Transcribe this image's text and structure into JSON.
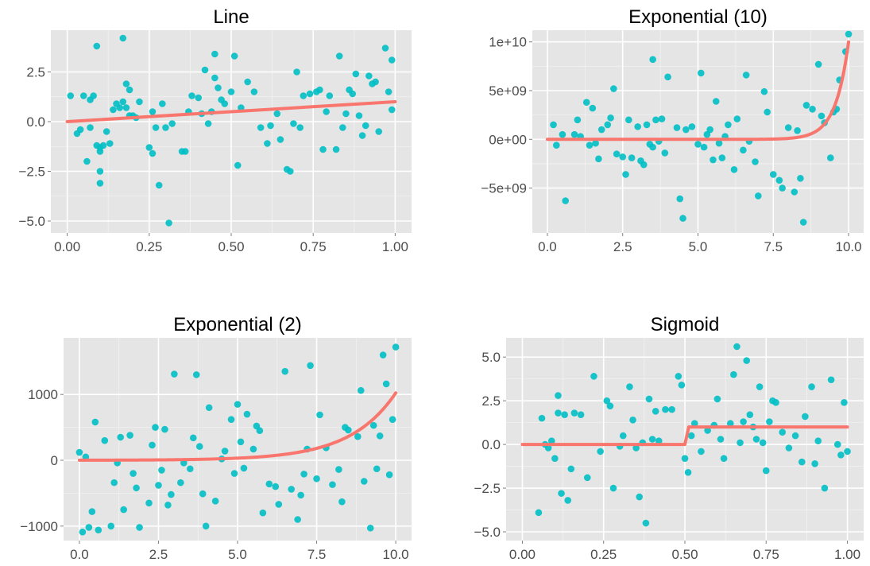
{
  "chart_data": [
    {
      "type": "scatter",
      "title": "Line",
      "xlim": [
        -0.05,
        1.05
      ],
      "ylim": [
        -5.6,
        4.6
      ],
      "xticks": [
        0,
        0.25,
        0.5,
        0.75,
        1.0
      ],
      "xtick_labels": [
        "0.00",
        "0.25",
        "0.50",
        "0.75",
        "1.00"
      ],
      "yticks": [
        -5,
        -2.5,
        0,
        2.5
      ],
      "ytick_labels": [
        "−5.0",
        "−2.5",
        "0.0",
        "2.5"
      ],
      "grid": true,
      "series": [
        {
          "kind": "points",
          "color": "#00bfc4",
          "x": [
            0.01,
            0.03,
            0.04,
            0.05,
            0.06,
            0.07,
            0.07,
            0.08,
            0.09,
            0.09,
            0.1,
            0.1,
            0.1,
            0.1,
            0.11,
            0.12,
            0.13,
            0.14,
            0.15,
            0.16,
            0.17,
            0.17,
            0.18,
            0.18,
            0.19,
            0.19,
            0.2,
            0.21,
            0.22,
            0.25,
            0.26,
            0.26,
            0.27,
            0.28,
            0.29,
            0.3,
            0.31,
            0.32,
            0.35,
            0.36,
            0.37,
            0.38,
            0.4,
            0.41,
            0.42,
            0.43,
            0.44,
            0.45,
            0.45,
            0.46,
            0.47,
            0.48,
            0.5,
            0.51,
            0.52,
            0.53,
            0.55,
            0.57,
            0.59,
            0.61,
            0.62,
            0.64,
            0.65,
            0.67,
            0.68,
            0.69,
            0.7,
            0.71,
            0.72,
            0.74,
            0.76,
            0.77,
            0.78,
            0.79,
            0.8,
            0.82,
            0.83,
            0.84,
            0.85,
            0.86,
            0.87,
            0.88,
            0.89,
            0.9,
            0.91,
            0.92,
            0.93,
            0.94,
            0.95,
            0.97,
            0.98,
            0.99,
            0.99
          ],
          "y": [
            1.3,
            -0.6,
            -0.4,
            1.3,
            -2.0,
            1.1,
            -0.3,
            1.3,
            3.8,
            -1.2,
            -1.5,
            -1.3,
            -2.5,
            -3.1,
            -1.2,
            -0.5,
            -1.1,
            0.6,
            0.9,
            0.7,
            1.0,
            4.2,
            0.7,
            1.9,
            1.6,
            0.3,
            0.3,
            0.2,
            1.0,
            -1.3,
            -1.6,
            0.5,
            -0.3,
            -3.2,
            0.9,
            -0.3,
            -5.1,
            -0.1,
            -1.5,
            -1.5,
            0.5,
            1.3,
            1.2,
            0.4,
            2.6,
            -0.1,
            0.5,
            3.4,
            2.2,
            1.7,
            1.1,
            0.9,
            1.5,
            3.3,
            -2.2,
            0.7,
            2.0,
            1.5,
            -0.3,
            -1.1,
            -0.2,
            0.4,
            -0.9,
            -2.4,
            -2.5,
            -0.1,
            2.5,
            -0.3,
            1.3,
            1.4,
            1.5,
            1.6,
            -1.4,
            0.5,
            1.3,
            -1.4,
            3.3,
            -0.3,
            0.4,
            1.6,
            1.4,
            2.4,
            0.3,
            -0.7,
            -0.2,
            2.3,
            1.9,
            2.0,
            -0.5,
            3.7,
            1.5,
            3.1,
            0.6
          ]
        },
        {
          "kind": "line",
          "color": "#f8766d",
          "x": [
            0,
            1
          ],
          "y": [
            0,
            1
          ]
        }
      ]
    },
    {
      "type": "scatter",
      "title": "Exponential (10)",
      "xlim": [
        -0.5,
        10.5
      ],
      "ylim": [
        -9600000000.0,
        11200000000.0
      ],
      "xticks": [
        0,
        2.5,
        5,
        7.5,
        10
      ],
      "xtick_labels": [
        "0.0",
        "2.5",
        "5.0",
        "7.5",
        "10.0"
      ],
      "yticks": [
        -5000000000.0,
        0,
        5000000000.0,
        10000000000.0
      ],
      "ytick_labels": [
        "−5e+09",
        "0e+00",
        "5e+09",
        "1e+10"
      ],
      "grid": true,
      "series": [
        {
          "kind": "points",
          "color": "#00bfc4",
          "x": [
            0.2,
            0.3,
            0.5,
            0.6,
            0.9,
            1.0,
            1.1,
            1.3,
            1.4,
            1.5,
            1.6,
            1.7,
            1.8,
            2.0,
            2.1,
            2.2,
            2.3,
            2.5,
            2.6,
            2.7,
            2.8,
            3.0,
            3.1,
            3.2,
            3.3,
            3.4,
            3.5,
            3.5,
            3.6,
            3.7,
            3.8,
            3.9,
            4.0,
            4.3,
            4.4,
            4.5,
            4.6,
            4.8,
            5.0,
            5.1,
            5.2,
            5.3,
            5.4,
            5.5,
            5.6,
            5.7,
            5.8,
            5.9,
            6.0,
            6.2,
            6.3,
            6.5,
            6.6,
            6.7,
            6.9,
            7.0,
            7.2,
            7.3,
            7.5,
            7.7,
            7.8,
            8.0,
            8.2,
            8.3,
            8.4,
            8.5,
            8.6,
            8.8,
            9.0,
            9.1,
            9.2,
            9.4,
            9.5,
            9.6,
            9.7,
            9.9,
            10.0
          ],
          "y": [
            1500000000.0,
            -600000000.0,
            500000000.0,
            -6300000000.0,
            500000000.0,
            2000000000.0,
            300000000.0,
            3800000000.0,
            -600000000.0,
            3200000000.0,
            -400000000.0,
            -2000000000.0,
            1000000000.0,
            1500000000.0,
            2200000000.0,
            5200000000.0,
            -1500000000.0,
            -1800000000.0,
            -3600000000.0,
            2000000000.0,
            -1900000000.0,
            1300000000.0,
            -2200000000.0,
            -2600000000.0,
            1500000000.0,
            -500000000.0,
            8200000000.0,
            -800000000.0,
            2000000000.0,
            -200000000.0,
            2100000000.0,
            -1400000000.0,
            6400000000.0,
            1200000000.0,
            -6100000000.0,
            -8100000000.0,
            1000000000.0,
            1300000000.0,
            -500000000.0,
            6800000000.0,
            -800000000.0,
            500000000.0,
            1000000000.0,
            -2100000000.0,
            3900000000.0,
            -400000000.0,
            -1900000000.0,
            300000000.0,
            1500000000.0,
            -3100000000.0,
            2100000000.0,
            -1100000000.0,
            6600000000.0,
            -200000000.0,
            -2300000000.0,
            -5800000000.0,
            4900000000.0,
            2800000000.0,
            -3600000000.0,
            -4200000000.0,
            -5000000000.0,
            1200000000.0,
            -5400000000.0,
            900000000.0,
            -4000000000.0,
            -8500000000.0,
            3500000000.0,
            3100000000.0,
            7700000000.0,
            2400000000.0,
            1700000000.0,
            -1900000000.0,
            2800000000.0,
            3100000000.0,
            6100000000.0,
            9000000000.0,
            10800000000.0
          ]
        },
        {
          "kind": "curve",
          "color": "#f8766d",
          "form": "pow10",
          "x0": 0,
          "x1": 10
        }
      ]
    },
    {
      "type": "scatter",
      "title": "Exponential (2)",
      "xlim": [
        -0.5,
        10.5
      ],
      "ylim": [
        -1220,
        1860
      ],
      "xticks": [
        0,
        2.5,
        5,
        7.5,
        10
      ],
      "xtick_labels": [
        "0.0",
        "2.5",
        "5.0",
        "7.5",
        "10.0"
      ],
      "yticks": [
        -1000,
        0,
        1000
      ],
      "ytick_labels": [
        "−1000",
        "0",
        "1000"
      ],
      "grid": true,
      "series": [
        {
          "kind": "points",
          "color": "#00bfc4",
          "x": [
            0.0,
            0.1,
            0.2,
            0.3,
            0.4,
            0.5,
            0.6,
            0.8,
            1.0,
            1.1,
            1.2,
            1.3,
            1.4,
            1.6,
            1.7,
            1.8,
            1.9,
            2.2,
            2.3,
            2.4,
            2.5,
            2.6,
            2.7,
            2.8,
            2.9,
            3.0,
            3.2,
            3.3,
            3.5,
            3.6,
            3.7,
            3.8,
            3.9,
            4.0,
            4.1,
            4.3,
            4.5,
            4.6,
            4.8,
            4.9,
            5.0,
            5.1,
            5.2,
            5.3,
            5.5,
            5.6,
            5.7,
            5.8,
            6.0,
            6.2,
            6.3,
            6.5,
            6.7,
            6.9,
            7.0,
            7.1,
            7.2,
            7.3,
            7.5,
            7.6,
            7.8,
            8.0,
            8.2,
            8.3,
            8.4,
            8.5,
            8.8,
            8.9,
            9.0,
            9.2,
            9.3,
            9.4,
            9.5,
            9.6,
            9.7,
            9.8,
            9.9,
            10.0
          ],
          "y": [
            120,
            -1090,
            50,
            -1020,
            -780,
            580,
            -1060,
            300,
            -1000,
            -340,
            -40,
            350,
            -750,
            380,
            -200,
            -420,
            -1020,
            -650,
            230,
            500,
            -380,
            -150,
            470,
            -680,
            -520,
            1310,
            -340,
            -40,
            -130,
            340,
            1300,
            210,
            -510,
            -1000,
            800,
            -620,
            20,
            140,
            620,
            -200,
            850,
            280,
            -120,
            700,
            170,
            520,
            450,
            -800,
            -360,
            -400,
            -670,
            1350,
            -440,
            -900,
            -530,
            -210,
            170,
            1440,
            -280,
            690,
            190,
            -370,
            -140,
            -630,
            500,
            460,
            360,
            1060,
            -320,
            -1030,
            530,
            -130,
            370,
            1600,
            1160,
            -220,
            620,
            1720
          ]
        },
        {
          "kind": "curve",
          "color": "#f8766d",
          "form": "pow2",
          "x0": 0,
          "x1": 10
        }
      ]
    },
    {
      "type": "scatter",
      "title": "Sigmoid",
      "xlim": [
        -0.05,
        1.05
      ],
      "ylim": [
        -5.5,
        6.1
      ],
      "xticks": [
        0,
        0.25,
        0.5,
        0.75,
        1.0
      ],
      "xtick_labels": [
        "0.00",
        "0.25",
        "0.50",
        "0.75",
        "1.00"
      ],
      "yticks": [
        -5,
        -2.5,
        0,
        2.5,
        5
      ],
      "ytick_labels": [
        "−5.0",
        "−2.5",
        "0.0",
        "2.5",
        "5.0"
      ],
      "grid": true,
      "series": [
        {
          "kind": "points",
          "color": "#00bfc4",
          "x": [
            0.05,
            0.06,
            0.07,
            0.08,
            0.09,
            0.1,
            0.11,
            0.11,
            0.12,
            0.13,
            0.14,
            0.15,
            0.16,
            0.18,
            0.2,
            0.22,
            0.24,
            0.26,
            0.27,
            0.28,
            0.3,
            0.31,
            0.33,
            0.34,
            0.35,
            0.36,
            0.37,
            0.38,
            0.39,
            0.4,
            0.41,
            0.42,
            0.44,
            0.46,
            0.48,
            0.49,
            0.5,
            0.51,
            0.52,
            0.53,
            0.55,
            0.57,
            0.59,
            0.6,
            0.61,
            0.62,
            0.64,
            0.65,
            0.66,
            0.67,
            0.68,
            0.69,
            0.7,
            0.71,
            0.72,
            0.73,
            0.74,
            0.75,
            0.76,
            0.77,
            0.78,
            0.8,
            0.82,
            0.84,
            0.86,
            0.87,
            0.89,
            0.9,
            0.91,
            0.93,
            0.95,
            0.97,
            0.98,
            0.99,
            1.0
          ],
          "y": [
            -3.9,
            1.5,
            0.0,
            -0.2,
            0.2,
            -0.8,
            2.8,
            1.8,
            -2.8,
            1.7,
            -3.2,
            -1.4,
            1.8,
            1.7,
            -1.9,
            3.9,
            -0.4,
            2.5,
            2.2,
            -2.5,
            -0.1,
            0.5,
            3.3,
            1.4,
            -0.2,
            -3.0,
            0.1,
            -4.5,
            2.6,
            0.3,
            1.9,
            0.2,
            2.0,
            2.0,
            3.9,
            3.4,
            -0.8,
            -1.6,
            0.5,
            1.2,
            -0.4,
            0.8,
            1.1,
            2.6,
            0.3,
            -0.8,
            1.2,
            4.0,
            5.6,
            0.1,
            1.3,
            4.8,
            1.7,
            1.0,
            0.3,
            3.3,
            0.1,
            -1.5,
            1.3,
            2.5,
            2.4,
            0.7,
            -0.2,
            0.5,
            -1.0,
            1.6,
            3.3,
            -1.1,
            0.2,
            -2.5,
            3.7,
            0.0,
            -0.6,
            2.4,
            -0.4
          ]
        },
        {
          "kind": "step",
          "color": "#f8766d",
          "x0": 0,
          "x1": 1,
          "xs": 0.5,
          "lo": 0,
          "hi": 1
        }
      ]
    }
  ]
}
